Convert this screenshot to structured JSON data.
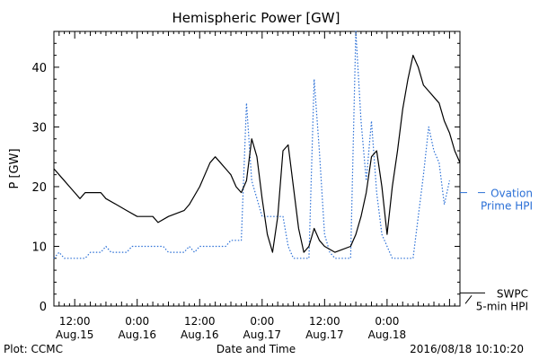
{
  "chart_data": {
    "type": "line",
    "title": "Hemispheric Power [GW]",
    "xlabel": "Date and Time",
    "ylabel": "P [GW]",
    "xlim": [
      "2016-08-15T08:00",
      "2016-08-18T14:00"
    ],
    "ylim": [
      0,
      46
    ],
    "yticks": [
      0,
      10,
      20,
      30,
      40
    ],
    "xticks": [
      {
        "time": "2016-08-15T12:00",
        "line1": "12:00",
        "line2": "Aug.15"
      },
      {
        "time": "2016-08-16T00:00",
        "line1": "0:00",
        "line2": "Aug.16"
      },
      {
        "time": "2016-08-16T12:00",
        "line1": "12:00",
        "line2": "Aug.16"
      },
      {
        "time": "2016-08-17T00:00",
        "line1": "0:00",
        "line2": "Aug.17"
      },
      {
        "time": "2016-08-17T12:00",
        "line1": "12:00",
        "line2": "Aug.17"
      },
      {
        "time": "2016-08-18T00:00",
        "line1": "0:00",
        "line2": "Aug.18"
      }
    ],
    "series": [
      {
        "name": "Ovation Prime HPI",
        "legend_lines": [
          "Ovation",
          "Prime HPI"
        ],
        "style": "dotted",
        "color": "#2a6fd6",
        "points": [
          [
            "2016-08-15T08:00",
            8
          ],
          [
            "2016-08-15T09:00",
            9
          ],
          [
            "2016-08-15T10:00",
            8
          ],
          [
            "2016-08-15T14:00",
            8
          ],
          [
            "2016-08-15T15:00",
            9
          ],
          [
            "2016-08-15T17:00",
            9
          ],
          [
            "2016-08-15T18:00",
            10
          ],
          [
            "2016-08-15T19:00",
            9
          ],
          [
            "2016-08-15T22:00",
            9
          ],
          [
            "2016-08-15T23:00",
            10
          ],
          [
            "2016-08-16T05:00",
            10
          ],
          [
            "2016-08-16T06:00",
            9
          ],
          [
            "2016-08-16T09:00",
            9
          ],
          [
            "2016-08-16T10:00",
            10
          ],
          [
            "2016-08-16T11:00",
            9
          ],
          [
            "2016-08-16T12:00",
            10
          ],
          [
            "2016-08-16T17:00",
            10
          ],
          [
            "2016-08-16T18:00",
            11
          ],
          [
            "2016-08-16T20:00",
            11
          ],
          [
            "2016-08-16T21:00",
            34
          ],
          [
            "2016-08-16T22:00",
            21
          ],
          [
            "2016-08-17T00:00",
            15
          ],
          [
            "2016-08-17T04:00",
            15
          ],
          [
            "2016-08-17T05:00",
            10
          ],
          [
            "2016-08-17T06:00",
            8
          ],
          [
            "2016-08-17T09:00",
            8
          ],
          [
            "2016-08-17T10:00",
            38
          ],
          [
            "2016-08-17T11:00",
            26
          ],
          [
            "2016-08-17T12:00",
            12
          ],
          [
            "2016-08-17T13:00",
            9
          ],
          [
            "2016-08-17T14:00",
            8
          ],
          [
            "2016-08-17T17:00",
            8
          ],
          [
            "2016-08-17T18:00",
            46
          ],
          [
            "2016-08-17T19:00",
            31
          ],
          [
            "2016-08-17T20:00",
            21
          ],
          [
            "2016-08-17T21:00",
            31
          ],
          [
            "2016-08-17T22:00",
            19
          ],
          [
            "2016-08-17T23:00",
            12
          ],
          [
            "2016-08-18T00:00",
            10
          ],
          [
            "2016-08-18T01:00",
            8
          ],
          [
            "2016-08-18T05:00",
            8
          ],
          [
            "2016-08-18T07:00",
            22
          ],
          [
            "2016-08-18T08:00",
            30
          ],
          [
            "2016-08-18T09:00",
            26
          ],
          [
            "2016-08-18T10:00",
            24
          ],
          [
            "2016-08-18T11:00",
            17
          ],
          [
            "2016-08-18T12:00",
            21
          ]
        ]
      },
      {
        "name": "SWPC 5-min HPI",
        "legend_lines": [
          "SWPC",
          "5-min HPI"
        ],
        "style": "solid",
        "color": "#000000",
        "points": [
          [
            "2016-08-15T08:00",
            23
          ],
          [
            "2016-08-15T09:00",
            22
          ],
          [
            "2016-08-15T10:00",
            21
          ],
          [
            "2016-08-15T11:00",
            20
          ],
          [
            "2016-08-15T12:00",
            19
          ],
          [
            "2016-08-15T13:00",
            18
          ],
          [
            "2016-08-15T14:00",
            19
          ],
          [
            "2016-08-15T17:00",
            19
          ],
          [
            "2016-08-15T18:00",
            18
          ],
          [
            "2016-08-15T20:00",
            17
          ],
          [
            "2016-08-15T22:00",
            16
          ],
          [
            "2016-08-16T00:00",
            15
          ],
          [
            "2016-08-16T03:00",
            15
          ],
          [
            "2016-08-16T04:00",
            14
          ],
          [
            "2016-08-16T06:00",
            15
          ],
          [
            "2016-08-16T09:00",
            16
          ],
          [
            "2016-08-16T10:00",
            17
          ],
          [
            "2016-08-16T12:00",
            20
          ],
          [
            "2016-08-16T14:00",
            24
          ],
          [
            "2016-08-16T15:00",
            25
          ],
          [
            "2016-08-16T16:00",
            24
          ],
          [
            "2016-08-16T17:00",
            23
          ],
          [
            "2016-08-16T18:00",
            22
          ],
          [
            "2016-08-16T19:00",
            20
          ],
          [
            "2016-08-16T20:00",
            19
          ],
          [
            "2016-08-16T21:00",
            21
          ],
          [
            "2016-08-16T22:00",
            28
          ],
          [
            "2016-08-16T23:00",
            25
          ],
          [
            "2016-08-17T00:00",
            18
          ],
          [
            "2016-08-17T01:00",
            12
          ],
          [
            "2016-08-17T02:00",
            9
          ],
          [
            "2016-08-17T03:00",
            15
          ],
          [
            "2016-08-17T04:00",
            26
          ],
          [
            "2016-08-17T05:00",
            27
          ],
          [
            "2016-08-17T06:00",
            20
          ],
          [
            "2016-08-17T07:00",
            13
          ],
          [
            "2016-08-17T08:00",
            9
          ],
          [
            "2016-08-17T09:00",
            10
          ],
          [
            "2016-08-17T10:00",
            13
          ],
          [
            "2016-08-17T11:00",
            11
          ],
          [
            "2016-08-17T12:00",
            10
          ],
          [
            "2016-08-17T14:00",
            9
          ],
          [
            "2016-08-17T17:00",
            10
          ],
          [
            "2016-08-17T18:00",
            12
          ],
          [
            "2016-08-17T19:00",
            15
          ],
          [
            "2016-08-17T20:00",
            19
          ],
          [
            "2016-08-17T21:00",
            25
          ],
          [
            "2016-08-17T22:00",
            26
          ],
          [
            "2016-08-17T23:00",
            20
          ],
          [
            "2016-08-18T00:00",
            12
          ],
          [
            "2016-08-18T01:00",
            20
          ],
          [
            "2016-08-18T02:00",
            26
          ],
          [
            "2016-08-18T03:00",
            33
          ],
          [
            "2016-08-18T04:00",
            38
          ],
          [
            "2016-08-18T05:00",
            42
          ],
          [
            "2016-08-18T06:00",
            40
          ],
          [
            "2016-08-18T07:00",
            37
          ],
          [
            "2016-08-18T08:00",
            36
          ],
          [
            "2016-08-18T09:00",
            35
          ],
          [
            "2016-08-18T10:00",
            34
          ],
          [
            "2016-08-18T11:00",
            31
          ],
          [
            "2016-08-18T12:00",
            29
          ],
          [
            "2016-08-18T13:00",
            26
          ],
          [
            "2016-08-18T14:00",
            24
          ]
        ]
      }
    ]
  },
  "footer": {
    "left": "Plot: CCMC",
    "timestamp": "2016/08/18 10:10:20"
  }
}
